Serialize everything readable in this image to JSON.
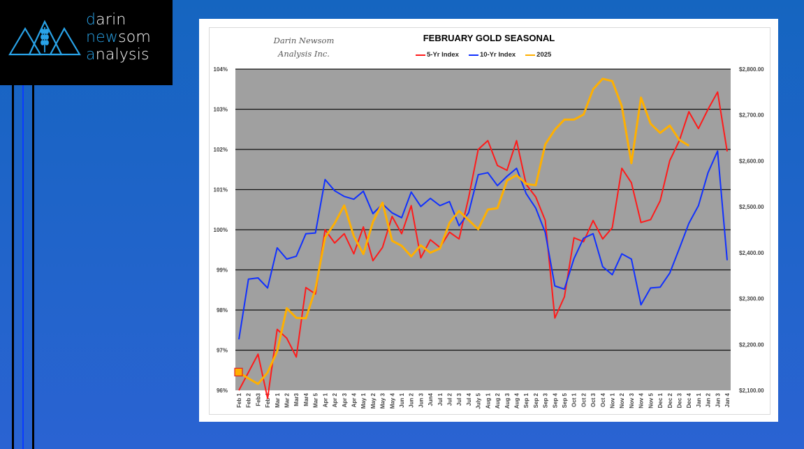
{
  "logo": {
    "lines": [
      {
        "accent": "d",
        "rest": "arin"
      },
      {
        "accent": "n",
        "mid": "ew",
        "rest": "som"
      },
      {
        "accent": "a",
        "rest": "nalysis"
      }
    ],
    "icon": "mountains-wheat-icon",
    "accent_color": "#29a3e8"
  },
  "watermark": {
    "line1": "Darin Newsom",
    "line2": "Analysis Inc."
  },
  "colors": {
    "five_yr": "#ff1a1a",
    "ten_yr": "#1030ff",
    "y2025": "#ffb000",
    "plot_bg": "#a0a0a0"
  },
  "chart_data": {
    "type": "line",
    "title": "FEBRUARY GOLD SEASONAL",
    "legend_position": "top",
    "grid": true,
    "categories": [
      "Feb 1",
      "Feb 2",
      "Feb3",
      "Feb 4",
      "Mar 1",
      "Mar 2",
      "Mar3",
      "Mar4",
      "Mar 5",
      "Apr 1",
      "Apr 2",
      "Apr 3",
      "Apr 4",
      "May 1",
      "May 2",
      "May 3",
      "May 4",
      "Jun 1",
      "Jun 2",
      "Jun 3",
      "Jun4",
      "Jul 1",
      "Jul 2",
      "Jul 3",
      "Jul 4",
      "July 5",
      "Aug 1",
      "Aug 2",
      "Aug 3",
      "Aug 4",
      "Sep 1",
      "Sep 2",
      "Sep 3",
      "Sep 4",
      "Sep 5",
      "Oct 1",
      "Oct 2",
      "Oct 3",
      "Oct 4",
      "Nov 1",
      "Nov 2",
      "Nov 3",
      "Nov 4",
      "Nov 5",
      "Dec 1",
      "Dec 2",
      "Dec 3",
      "Dec 4",
      "Jan 1",
      "Jan 2",
      "Jan 3",
      "Jan 4"
    ],
    "y_left": {
      "min": 96,
      "max": 104,
      "ticks": [
        "96%",
        "97%",
        "98%",
        "99%",
        "100%",
        "101%",
        "102%",
        "103%",
        "104%"
      ]
    },
    "y_right": {
      "min": 2100,
      "max": 2800,
      "ticks": [
        "$2,100.00",
        "$2,200.00",
        "$2,300.00",
        "$2,400.00",
        "$2,500.00",
        "$2,600.00",
        "$2,700.00",
        "$2,800.00"
      ]
    },
    "series": [
      {
        "name": "5-Yr Index",
        "axis": "left",
        "color": "#ff1a1a",
        "values": [
          96.0,
          96.45,
          96.9,
          95.8,
          97.52,
          97.3,
          96.83,
          98.56,
          98.4,
          100.0,
          99.67,
          99.9,
          99.4,
          100.07,
          99.23,
          99.56,
          100.33,
          99.9,
          100.6,
          99.3,
          99.75,
          99.56,
          99.94,
          99.77,
          100.8,
          102.0,
          102.22,
          101.6,
          101.48,
          102.22,
          101.13,
          100.82,
          100.23,
          97.8,
          98.33,
          99.8,
          99.7,
          100.23,
          99.77,
          100.05,
          101.53,
          101.17,
          100.18,
          100.25,
          100.72,
          101.72,
          102.22,
          102.94,
          102.52,
          103.0,
          103.43,
          101.95
        ]
      },
      {
        "name": "10-Yr Index",
        "axis": "left",
        "color": "#1030ff",
        "values": [
          97.27,
          98.77,
          98.8,
          98.55,
          99.55,
          99.27,
          99.34,
          99.9,
          99.92,
          101.25,
          100.97,
          100.83,
          100.76,
          100.96,
          100.4,
          100.64,
          100.42,
          100.3,
          100.94,
          100.58,
          100.78,
          100.6,
          100.7,
          100.1,
          100.42,
          101.37,
          101.42,
          101.1,
          101.33,
          101.53,
          100.9,
          100.54,
          99.93,
          98.6,
          98.52,
          99.28,
          99.79,
          99.9,
          99.08,
          98.88,
          99.4,
          99.27,
          98.13,
          98.55,
          98.57,
          98.92,
          99.53,
          100.16,
          100.6,
          101.42,
          101.96,
          99.24
        ]
      },
      {
        "name": "2025",
        "axis": "right",
        "color": "#ffb000",
        "values": [
          2139,
          2126,
          2114,
          2139,
          2185,
          2279,
          2258,
          2257,
          2321,
          2433,
          2464,
          2503,
          2436,
          2397,
          2467,
          2509,
          2426,
          2415,
          2392,
          2416,
          2400,
          2409,
          2465,
          2491,
          2471,
          2451,
          2494,
          2497,
          2557,
          2569,
          2550,
          2547,
          2636,
          2668,
          2690,
          2690,
          2701,
          2756,
          2779,
          2774,
          2719,
          2595,
          2738,
          2681,
          2661,
          2677,
          2646,
          2633,
          null,
          null,
          null,
          null
        ]
      }
    ],
    "marker": {
      "series": "2025",
      "category": "Feb 1",
      "value": 2139
    }
  }
}
